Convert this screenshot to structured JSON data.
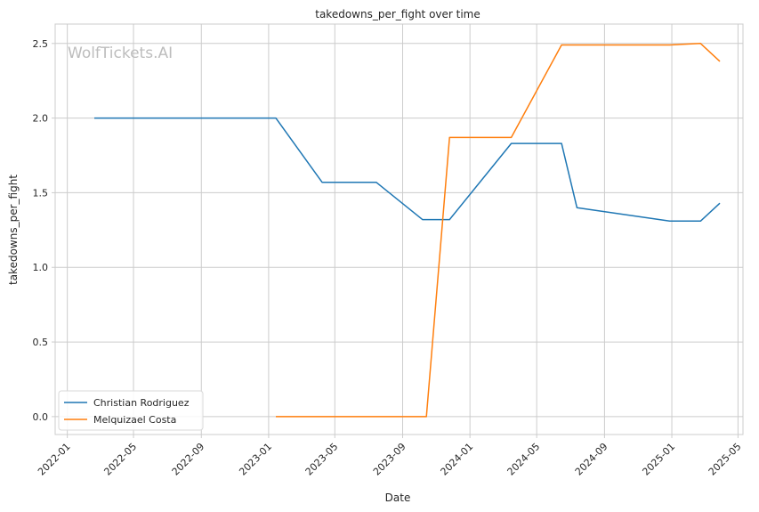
{
  "chart_data": {
    "type": "line",
    "title": "takedowns_per_fight over time",
    "xlabel": "Date",
    "ylabel": "takedowns_per_fight",
    "watermark": "WolfTickets.AI",
    "grid": true,
    "legend_position": "lower-left",
    "xlim": [
      "2021-12-10",
      "2025-05-10"
    ],
    "ylim": [
      -0.12,
      2.63
    ],
    "x_ticks": [
      "2022-01-01",
      "2022-05-01",
      "2022-09-01",
      "2023-01-01",
      "2023-05-01",
      "2023-09-01",
      "2024-01-01",
      "2024-05-01",
      "2024-09-01",
      "2025-01-01",
      "2025-05-01"
    ],
    "x_tick_labels": [
      "2022-01",
      "2022-05",
      "2022-09",
      "2023-01",
      "2023-05",
      "2023-09",
      "2024-01",
      "2024-05",
      "2024-09",
      "2025-01",
      "2025-05"
    ],
    "y_ticks": [
      0.0,
      0.5,
      1.0,
      1.5,
      2.0,
      2.5
    ],
    "y_tick_labels": [
      "0.0",
      "0.5",
      "1.0",
      "1.5",
      "2.0",
      "2.5"
    ],
    "series": [
      {
        "name": "Christian Rodriguez",
        "color": "#1f77b4",
        "points": [
          {
            "x": "2022-02-19",
            "y": 2.0
          },
          {
            "x": "2023-01-14",
            "y": 2.0
          },
          {
            "x": "2023-04-08",
            "y": 1.57
          },
          {
            "x": "2023-07-15",
            "y": 1.57
          },
          {
            "x": "2023-10-07",
            "y": 1.32
          },
          {
            "x": "2023-11-25",
            "y": 1.32
          },
          {
            "x": "2024-03-16",
            "y": 1.83
          },
          {
            "x": "2024-06-15",
            "y": 1.83
          },
          {
            "x": "2024-07-13",
            "y": 1.4
          },
          {
            "x": "2024-12-28",
            "y": 1.31
          },
          {
            "x": "2025-02-22",
            "y": 1.31
          },
          {
            "x": "2025-03-29",
            "y": 1.43
          }
        ]
      },
      {
        "name": "Melquizael Costa",
        "color": "#ff7f0e",
        "points": [
          {
            "x": "2023-01-14",
            "y": 0.0
          },
          {
            "x": "2023-10-14",
            "y": 0.0
          },
          {
            "x": "2023-11-25",
            "y": 1.87
          },
          {
            "x": "2024-03-16",
            "y": 1.87
          },
          {
            "x": "2024-06-15",
            "y": 2.49
          },
          {
            "x": "2024-12-28",
            "y": 2.49
          },
          {
            "x": "2025-02-22",
            "y": 2.5
          },
          {
            "x": "2025-03-29",
            "y": 2.38
          }
        ]
      }
    ]
  }
}
